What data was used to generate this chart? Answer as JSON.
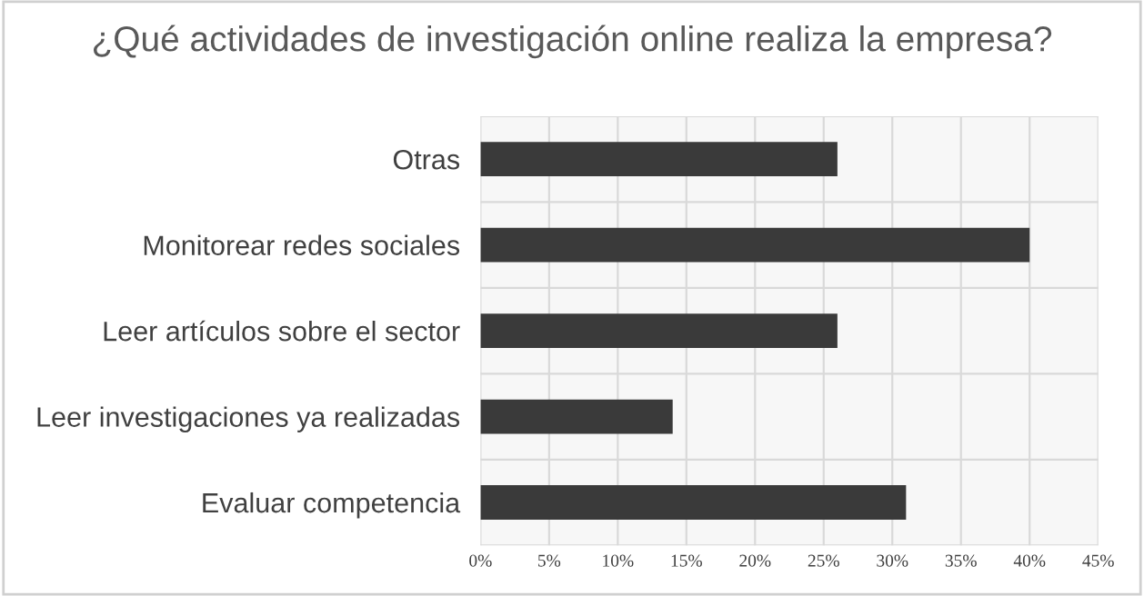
{
  "chart_data": {
    "type": "bar",
    "orientation": "horizontal",
    "title": "¿Qué actividades de investigación online realiza la empresa?",
    "categories": [
      "Otras",
      "Monitorear redes sociales",
      "Leer artículos sobre el sector",
      "Leer investigaciones ya realizadas",
      "Evaluar competencia"
    ],
    "values": [
      26,
      40,
      26,
      14,
      31
    ],
    "color": "#3a3a3a",
    "xlim": [
      0,
      45
    ],
    "xticks": [
      {
        "value": 0,
        "label": "0%"
      },
      {
        "value": 5,
        "label": "5%"
      },
      {
        "value": 10,
        "label": "10%"
      },
      {
        "value": 15,
        "label": "15%"
      },
      {
        "value": 20,
        "label": "20%"
      },
      {
        "value": 25,
        "label": "25%"
      },
      {
        "value": 30,
        "label": "30%"
      },
      {
        "value": 35,
        "label": "35%"
      },
      {
        "value": 40,
        "label": "40%"
      },
      {
        "value": 45,
        "label": "45%"
      }
    ],
    "grid": true,
    "legend": false
  }
}
